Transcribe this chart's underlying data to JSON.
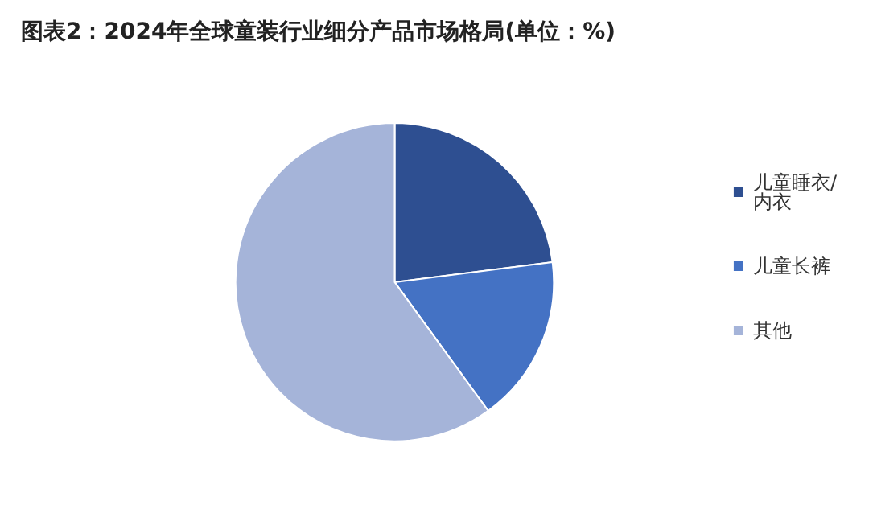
{
  "chart_data": {
    "type": "pie",
    "title": "图表2：2024年全球童装行业细分产品市场格局(单位：%)",
    "categories": [
      "儿童睡衣/内衣",
      "儿童长裤",
      "其他"
    ],
    "values": [
      23,
      17,
      60
    ],
    "colors": [
      "#2e4f91",
      "#4472c4",
      "#a5b4d9"
    ],
    "legend": "right"
  }
}
